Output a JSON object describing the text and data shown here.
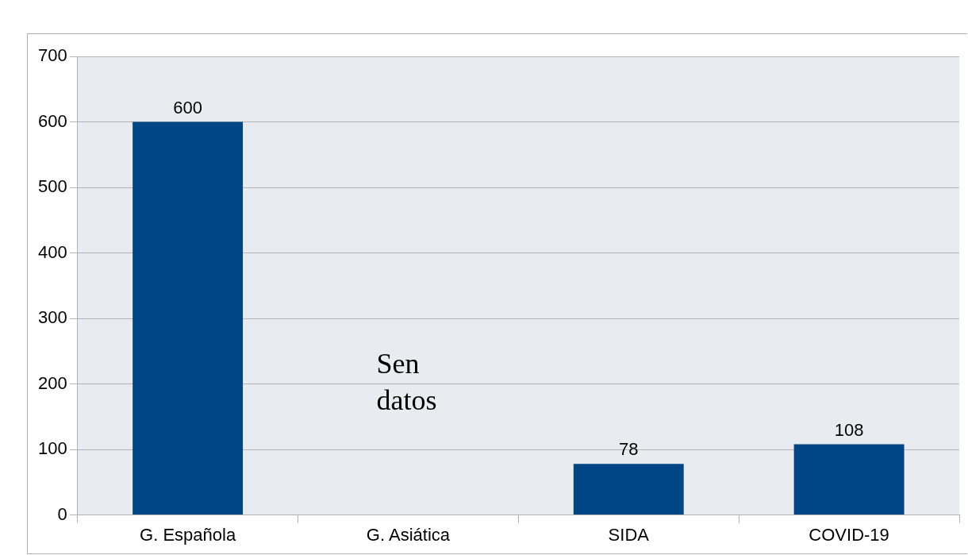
{
  "chart_data": {
    "type": "bar",
    "categories": [
      "G. Española",
      "G. Asiática",
      "SIDA",
      "COVID-19"
    ],
    "values": [
      600,
      null,
      78,
      108
    ],
    "color": "#004586",
    "ylim": [
      0,
      700
    ],
    "yticks": [
      0,
      100,
      200,
      300,
      400,
      500,
      600,
      700
    ],
    "grid": "y",
    "legend": false,
    "data_labels": true,
    "annotations": [
      "Sen datos"
    ]
  }
}
